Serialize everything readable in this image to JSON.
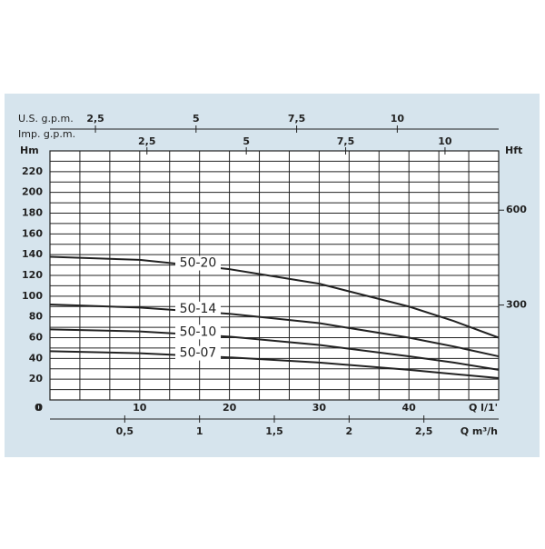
{
  "chart_data": {
    "type": "line",
    "x": [
      0,
      10,
      20,
      30,
      40,
      45,
      50
    ],
    "series": [
      {
        "name": "50-20",
        "color": "#222222",
        "values": [
          138,
          135,
          126,
          112,
          90,
          76,
          60
        ]
      },
      {
        "name": "50-14",
        "color": "#222222",
        "values": [
          92,
          89,
          83,
          74,
          60,
          51.5,
          42
        ]
      },
      {
        "name": "50-10",
        "color": "#222222",
        "values": [
          68,
          66,
          61,
          53,
          42,
          36,
          29
        ]
      },
      {
        "name": "50-07",
        "color": "#222222",
        "values": [
          47,
          45,
          41,
          36,
          29,
          25,
          21
        ]
      }
    ],
    "xlim": [
      0,
      50
    ],
    "xticks": [
      0,
      10,
      20,
      30,
      40
    ],
    "x_label": "Q l/1'",
    "ylim": [
      0,
      240
    ],
    "yticks": [
      0,
      20,
      40,
      60,
      80,
      100,
      120,
      140,
      160,
      180,
      200,
      220
    ],
    "y_label": "Hm",
    "y_minor_grid": [
      10,
      30,
      50,
      70,
      90,
      110,
      130,
      150,
      170,
      190,
      210,
      230,
      240
    ],
    "y2lim": [
      0,
      787.4
    ],
    "y2ticks": [
      300,
      600
    ],
    "y2_label": "Hft",
    "grid": true,
    "extra_x_axes": [
      {
        "label": "Q m³/h",
        "position": "bottom",
        "lim": [
          0,
          3
        ],
        "ticks": [
          {
            "value": 0.5,
            "label": "0,5"
          },
          1,
          {
            "value": 1.5,
            "label": "1,5"
          },
          2,
          {
            "value": 2.5,
            "label": "2,5"
          }
        ],
        "grid": [
          0.2,
          0.4,
          0.6,
          0.8,
          1,
          1.2,
          1.4,
          1.6,
          1.8,
          2,
          2.2,
          2.4,
          2.6,
          2.8
        ]
      },
      {
        "label": "U.S. g.p.m.",
        "position": "top",
        "lim": [
          1.37,
          12.52
        ],
        "ticks": [
          {
            "value": 2.5,
            "label": "2,5"
          },
          5,
          {
            "value": 7.5,
            "label": "7,5"
          },
          10
        ]
      },
      {
        "label": "Imp. g.p.m.",
        "position": "top2",
        "lim": [
          0.06,
          11.35
        ],
        "ticks": [
          {
            "value": 2.5,
            "label": "2,5"
          },
          5,
          {
            "value": 7.5,
            "label": "7,5"
          },
          10
        ]
      }
    ]
  }
}
